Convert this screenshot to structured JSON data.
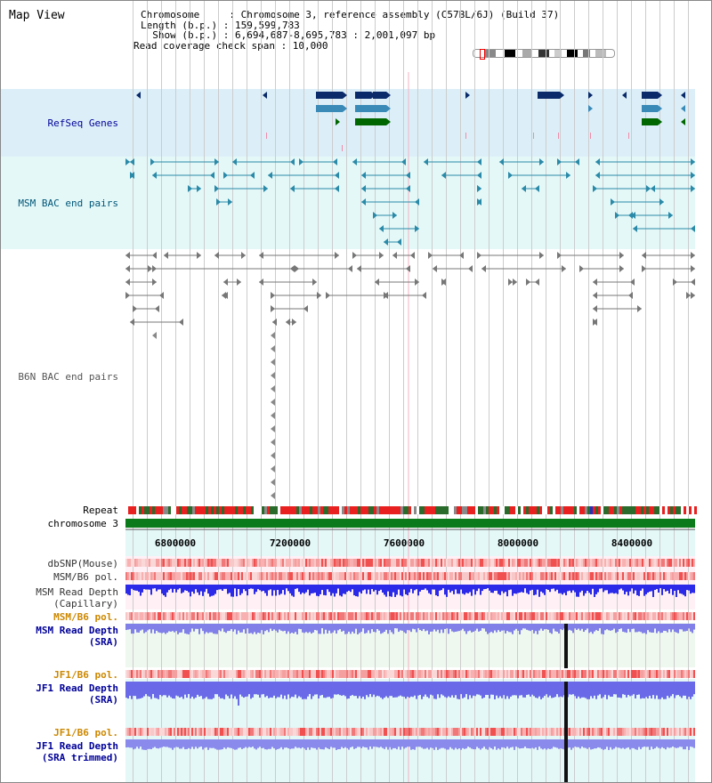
{
  "header": {
    "title": "Map View",
    "chromosome_line": "Chromosome     : Chromosome 3, reference assembly (C57BL/6J) (Build 37)",
    "length_line": "Length (b.p.) : 159,599,783",
    "show_line": "  Show (b.p.) : 6,694,687-8,695,783 : 2,001,097 bp",
    "coverage_line": "Read coverage check span : 10,000"
  },
  "tracks": {
    "refseq": "RefSeq Genes",
    "msm_bac": "MSM BAC end pairs",
    "b6n_bac": "B6N BAC end pairs",
    "repeat": "Repeat",
    "chromosome": "chromosome 3",
    "dbsnp": "dbSNP(Mouse)",
    "msm_b6_pol": "MSM/B6 pol.",
    "msm_read_depth_cap_1": "MSM Read Depth",
    "msm_read_depth_cap_2": "(Capillary)",
    "msm_b6_pol_2": "MSM/B6 pol.",
    "msm_read_depth_sra_1": "MSM Read Depth",
    "msm_read_depth_sra_2": "(SRA)",
    "jf1_b6_pol": "JF1/B6 pol.",
    "jf1_read_depth_sra_1": "JF1 Read Depth",
    "jf1_read_depth_sra_2": "(SRA)",
    "jf1_b6_pol_2": "JF1/B6 pol.",
    "jf1_read_depth_trim_1": "JF1 Read Depth",
    "jf1_read_depth_trim_2": "(SRA trimmed)"
  },
  "axis_ticks": [
    "6800000",
    "7200000",
    "7600000",
    "8000000",
    "8400000"
  ],
  "colors": {
    "refseq_label": "#000099",
    "msm_bac_label": "#005577",
    "b6n_bac_label": "#555555",
    "orange_label": "#cc8800",
    "refseq_bg": "#dceff8",
    "msm_bac_bg": "#e4f8f8",
    "gene_dark": "#0a2a6a",
    "gene_mid": "#3a8ab8",
    "gene_green": "#006600"
  }
}
